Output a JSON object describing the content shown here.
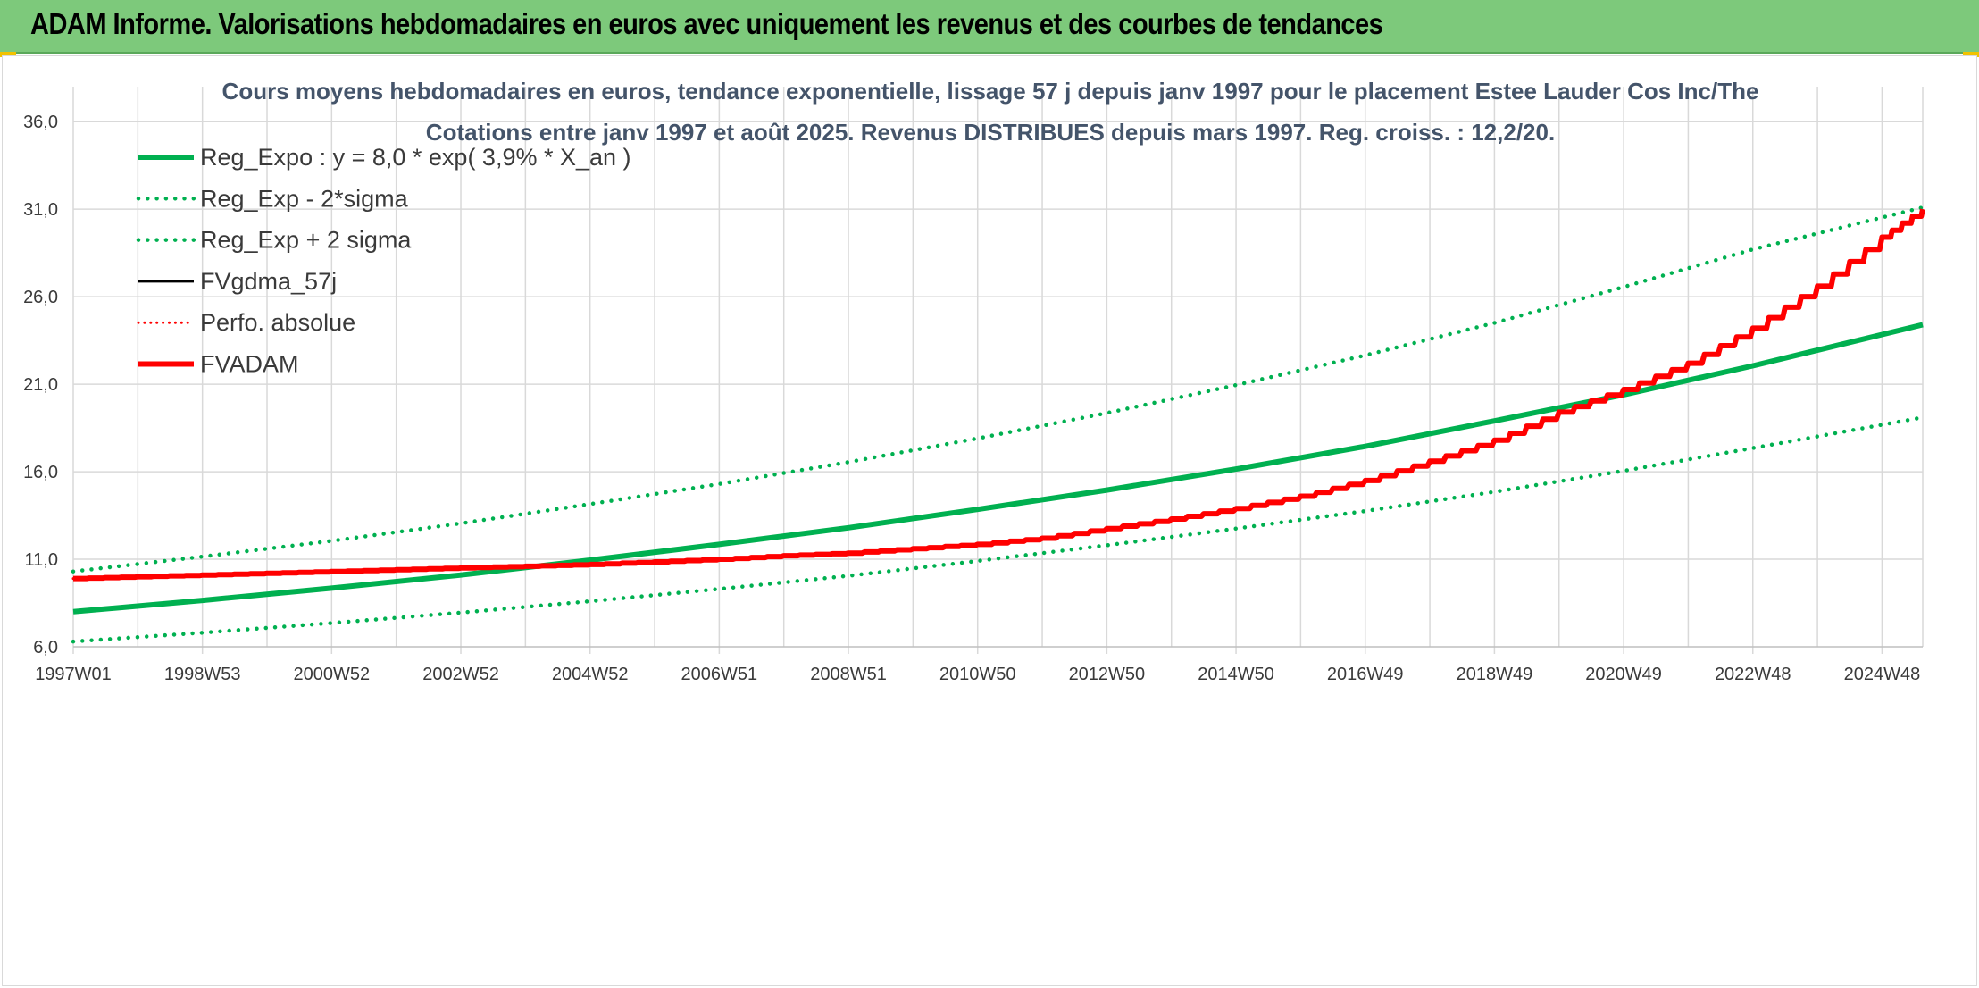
{
  "header": {
    "title": "ADAM Informe. Valorisations hebdomadaires en euros avec uniquement les revenus et des courbes de tendances"
  },
  "colors": {
    "header_bg": "#7dc97b",
    "trend": "#00b050",
    "fv": "#000000",
    "adam": "#ff0000",
    "grid": "#d9d9d9"
  },
  "chart_data": {
    "type": "line",
    "title_line1": "Cours moyens hebdomadaires en euros, tendance exponentielle, lissage 57 j depuis janv 1997 pour le placement Estee Lauder Cos Inc/The",
    "title_line2": "Cotations entre janv 1997 et août 2025. Revenus DISTRIBUES depuis mars 1997. Reg. croiss. : 12,2/20.",
    "ylim": [
      6,
      38
    ],
    "yticks": [
      6,
      11,
      16,
      21,
      26,
      31,
      36
    ],
    "ytick_labels": [
      "6,0",
      "11,0",
      "16,0",
      "21,0",
      "26,0",
      "31,0",
      "36,0"
    ],
    "xlim": [
      1997.0,
      2025.63
    ],
    "xticks": [
      {
        "x": 1997.0,
        "label": "1997W01"
      },
      {
        "x": 1999.0,
        "label": "1998W53"
      },
      {
        "x": 2001.0,
        "label": "2000W52"
      },
      {
        "x": 2003.0,
        "label": "2002W52"
      },
      {
        "x": 2005.0,
        "label": "2004W52"
      },
      {
        "x": 2007.0,
        "label": "2006W51"
      },
      {
        "x": 2009.0,
        "label": "2008W51"
      },
      {
        "x": 2011.0,
        "label": "2010W50"
      },
      {
        "x": 2013.0,
        "label": "2012W50"
      },
      {
        "x": 2015.0,
        "label": "2014W50"
      },
      {
        "x": 2017.0,
        "label": "2016W49"
      },
      {
        "x": 2019.0,
        "label": "2018W49"
      },
      {
        "x": 2021.0,
        "label": "2020W49"
      },
      {
        "x": 2023.0,
        "label": "2022W48"
      },
      {
        "x": 2025.0,
        "label": "2024W48"
      }
    ],
    "minor_gridlines_x": [
      1998,
      2000,
      2002,
      2004,
      2006,
      2008,
      2010,
      2012,
      2014,
      2016,
      2018,
      2020,
      2022,
      2024
    ],
    "grid": true,
    "legend_position": "top-left",
    "series": [
      {
        "name": "Reg_Expo : y = 8,0 * exp( 3,9% *  X_an )",
        "color": "#00b050",
        "style": "solid",
        "width": 6,
        "x": [
          1997.0,
          1999.0,
          2001.0,
          2003.0,
          2005.0,
          2007.0,
          2009.0,
          2011.0,
          2013.0,
          2015.0,
          2017.0,
          2019.0,
          2021.0,
          2023.0,
          2025.63
        ],
        "y": [
          8.0,
          8.65,
          9.35,
          10.1,
          10.95,
          11.85,
          12.8,
          13.85,
          14.95,
          16.15,
          17.45,
          18.9,
          20.4,
          22.05,
          24.4
        ]
      },
      {
        "name": "Reg_Exp - 2*sigma",
        "color": "#00b050",
        "style": "dotted",
        "width": 4.5,
        "x": [
          1997.0,
          1999.0,
          2001.0,
          2003.0,
          2005.0,
          2007.0,
          2009.0,
          2011.0,
          2013.0,
          2015.0,
          2017.0,
          2019.0,
          2021.0,
          2023.0,
          2025.63
        ],
        "y": [
          6.3,
          6.8,
          7.35,
          7.95,
          8.6,
          9.3,
          10.05,
          10.9,
          11.8,
          12.75,
          13.75,
          14.85,
          16.05,
          17.35,
          19.1
        ]
      },
      {
        "name": "Reg_Exp + 2 sigma",
        "color": "#00b050",
        "style": "dotted",
        "width": 4.5,
        "x": [
          1997.0,
          1999.0,
          2001.0,
          2003.0,
          2005.0,
          2007.0,
          2009.0,
          2011.0,
          2013.0,
          2015.0,
          2017.0,
          2019.0,
          2021.0,
          2023.0,
          2025.63
        ],
        "y": [
          10.3,
          11.15,
          12.05,
          13.05,
          14.15,
          15.3,
          16.55,
          17.9,
          19.35,
          20.95,
          22.65,
          24.5,
          26.55,
          28.7,
          31.1
        ]
      },
      {
        "name": "FVgdma_57j",
        "color": "#000000",
        "style": "solid",
        "width": 3,
        "x": [
          1997.0,
          1998.0,
          1999.0,
          2000.0,
          2001.0,
          2002.0,
          2003.0,
          2004.0,
          2005.0,
          2006.0,
          2007.0,
          2008.0,
          2009.0,
          2010.0,
          2011.0,
          2012.0,
          2013.0,
          2014.0,
          2015.0,
          2016.0,
          2017.0,
          2018.0,
          2019.0,
          2020.0,
          2021.0,
          2022.0,
          2023.0,
          2024.0,
          2025.0,
          2025.63
        ],
        "y": [
          9.9,
          10.0,
          10.1,
          10.2,
          10.3,
          10.4,
          10.5,
          10.6,
          10.7,
          10.85,
          11.0,
          11.2,
          11.35,
          11.6,
          11.85,
          12.2,
          12.75,
          13.3,
          13.9,
          14.6,
          15.5,
          16.6,
          17.8,
          19.4,
          20.7,
          22.2,
          24.2,
          26.6,
          29.4,
          31.0
        ]
      },
      {
        "name": "Perfo. absolue",
        "color": "#ff0000",
        "style": "dotted",
        "width": 3,
        "x": [
          1997.0,
          1998.0,
          1999.0,
          2000.0,
          2001.0,
          2002.0,
          2003.0,
          2004.0,
          2005.0,
          2006.0,
          2007.0,
          2008.0,
          2009.0,
          2010.0,
          2011.0,
          2012.0,
          2013.0,
          2014.0,
          2015.0,
          2016.0,
          2017.0,
          2018.0,
          2019.0,
          2020.0,
          2021.0,
          2022.0,
          2023.0,
          2024.0,
          2025.0,
          2025.63
        ],
        "y": [
          9.9,
          10.0,
          10.1,
          10.2,
          10.3,
          10.4,
          10.5,
          10.6,
          10.7,
          10.85,
          11.0,
          11.2,
          11.35,
          11.6,
          11.85,
          12.2,
          12.75,
          13.3,
          13.9,
          14.6,
          15.5,
          16.6,
          17.8,
          19.4,
          20.7,
          22.2,
          24.2,
          26.6,
          29.4,
          31.0
        ]
      },
      {
        "name": "FVADAM",
        "color": "#ff0000",
        "style": "solid",
        "width": 6,
        "x": [
          1997.0,
          1998.0,
          1999.0,
          2000.0,
          2001.0,
          2002.0,
          2003.0,
          2004.0,
          2005.0,
          2006.0,
          2007.0,
          2008.0,
          2009.0,
          2010.0,
          2011.0,
          2012.0,
          2013.0,
          2014.0,
          2015.0,
          2016.0,
          2017.0,
          2018.0,
          2019.0,
          2020.0,
          2021.0,
          2022.0,
          2023.0,
          2024.0,
          2025.0,
          2025.63
        ],
        "y": [
          9.9,
          10.0,
          10.1,
          10.2,
          10.3,
          10.4,
          10.5,
          10.6,
          10.7,
          10.85,
          11.0,
          11.2,
          11.35,
          11.6,
          11.85,
          12.2,
          12.75,
          13.3,
          13.9,
          14.6,
          15.5,
          16.6,
          17.8,
          19.4,
          20.7,
          22.2,
          24.2,
          26.6,
          29.4,
          31.0
        ]
      }
    ]
  }
}
